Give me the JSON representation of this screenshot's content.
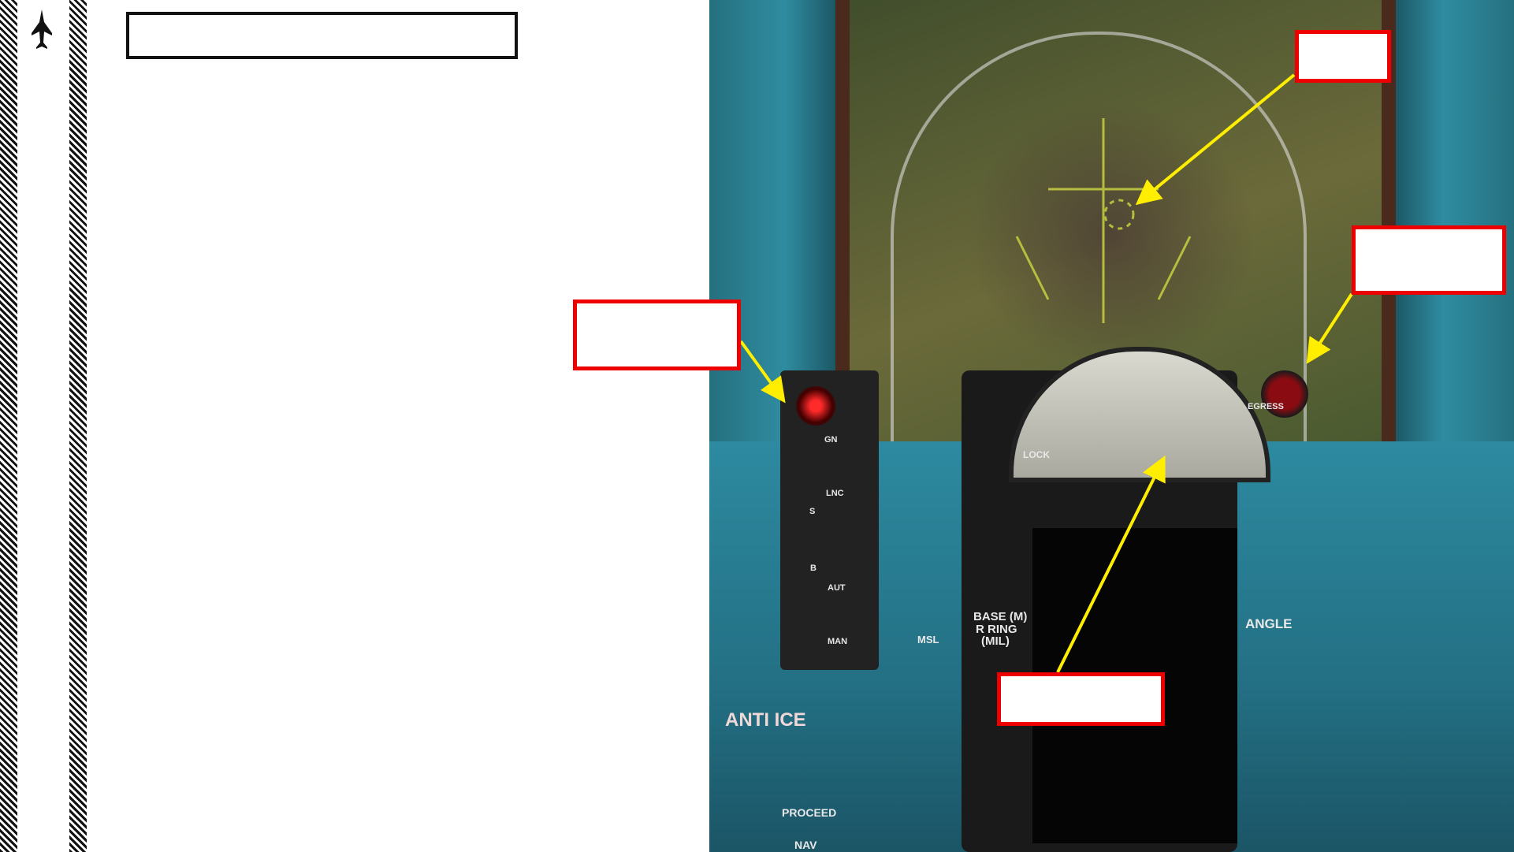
{
  "sidebar": {
    "icon": "fighter-jet-icon"
  },
  "header": {
    "title": ""
  },
  "cockpit": {
    "labels": {
      "base": "BASE (M)",
      "rring": "R RING",
      "mil": "(MIL)",
      "angle": "ANGLE",
      "lock": "LOCK",
      "egress": "EGRESS",
      "anti_ice": "ANTI ICE",
      "proceed": "PROCEED",
      "nav": "NAV",
      "msl": "MSL",
      "lnc": "LNC",
      "gn": "GN",
      "aut": "AUT",
      "man": "MAN",
      "s": "S",
      "b": "B"
    }
  },
  "callouts": [
    {
      "name": "reticle-callout",
      "text": ""
    },
    {
      "name": "lamp-callout",
      "text": ""
    },
    {
      "name": "left-lamp-callout",
      "text": ""
    },
    {
      "name": "gauge-callout",
      "text": ""
    }
  ],
  "colors": {
    "callout_border": "#e00000",
    "arrow": "#ffee00",
    "reticle": "#c8d040"
  }
}
